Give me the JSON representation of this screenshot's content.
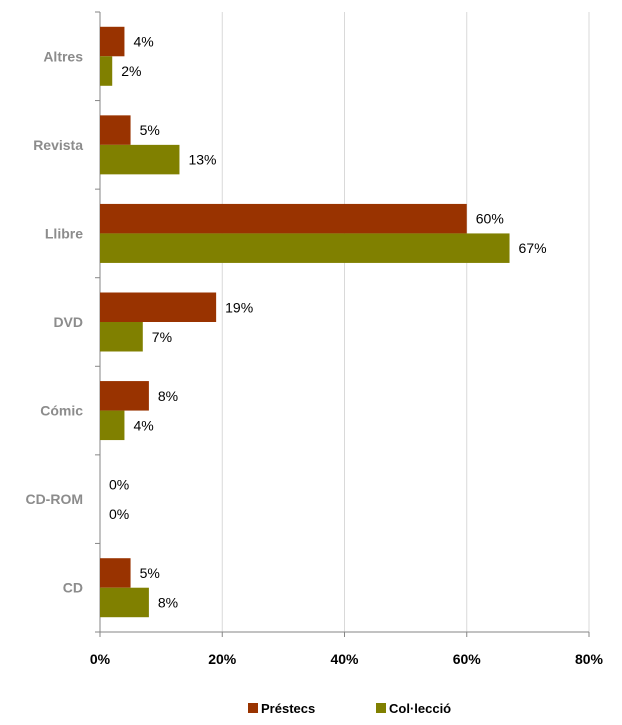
{
  "chart_data": {
    "type": "bar",
    "orientation": "horizontal",
    "categories": [
      "Altres",
      "Revista",
      "Llibre",
      "DVD",
      "Cómic",
      "CD-ROM",
      "CD"
    ],
    "series": [
      {
        "name": "Préstecs",
        "color": "#993300",
        "values": [
          4,
          5,
          60,
          19,
          8,
          0,
          5
        ],
        "labels": [
          "4%",
          "5%",
          "60%",
          "19%",
          "8%",
          "0%",
          "5%"
        ]
      },
      {
        "name": "Col·lecció",
        "color": "#808000",
        "values": [
          2,
          13,
          67,
          7,
          4,
          0,
          8
        ],
        "labels": [
          "2%",
          "13%",
          "67%",
          "7%",
          "4%",
          "0%",
          "8%"
        ]
      }
    ],
    "xlim": [
      0,
      80
    ],
    "x_ticks": [
      "0%",
      "20%",
      "40%",
      "60%",
      "80%"
    ],
    "grid": true,
    "legend_position": "bottom",
    "title": "",
    "xlabel": "",
    "ylabel": ""
  }
}
